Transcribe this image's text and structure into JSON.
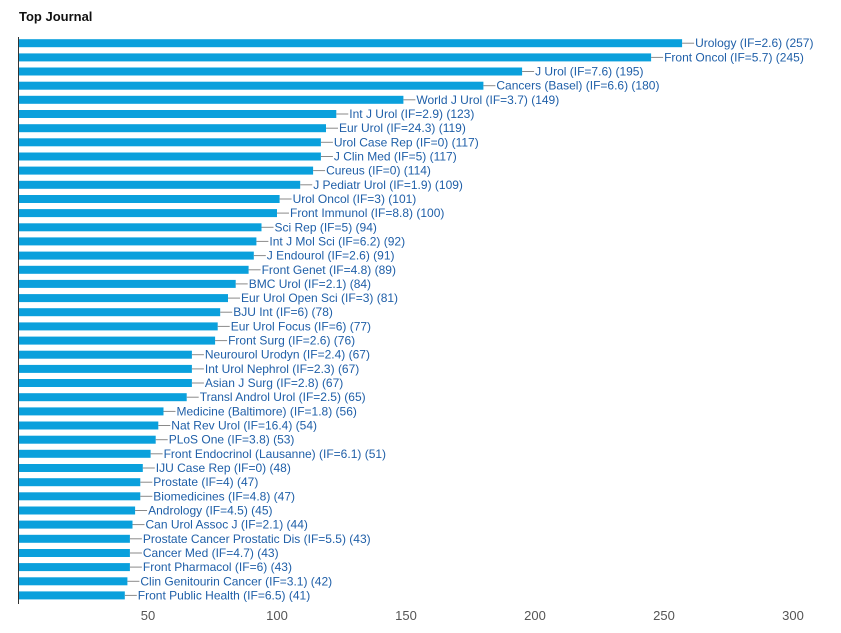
{
  "chart_data": {
    "type": "bar",
    "orientation": "horizontal",
    "title": "Top Journal",
    "xlabel": "",
    "ylabel": "",
    "xlim": [
      0,
      300
    ],
    "x_ticks": [
      50,
      100,
      150,
      200,
      250,
      300
    ],
    "grid": false,
    "legend": "none",
    "bar_color": "#0aa0dc",
    "label_color": "#1f5fa8",
    "categories": [
      "Urology (IF=2.6)",
      "Front Oncol (IF=5.7)",
      "J Urol (IF=7.6)",
      "Cancers (Basel) (IF=6.6)",
      "World J Urol (IF=3.7)",
      "Int J Urol (IF=2.9)",
      "Eur Urol (IF=24.3)",
      "Urol Case Rep (IF=0)",
      "J Clin Med (IF=5)",
      "Cureus (IF=0)",
      "J Pediatr Urol (IF=1.9)",
      "Urol Oncol (IF=3)",
      "Front Immunol (IF=8.8)",
      "Sci Rep (IF=5)",
      "Int J Mol Sci (IF=6.2)",
      "J Endourol (IF=2.6)",
      "Front Genet (IF=4.8)",
      "BMC Urol (IF=2.1)",
      "Eur Urol Open Sci (IF=3)",
      "BJU Int (IF=6)",
      "Eur Urol Focus (IF=6)",
      "Front Surg (IF=2.6)",
      "Neurourol Urodyn (IF=2.4)",
      "Int Urol Nephrol (IF=2.3)",
      "Asian J Surg (IF=2.8)",
      "Transl Androl Urol (IF=2.5)",
      "Medicine (Baltimore) (IF=1.8)",
      "Nat Rev Urol (IF=16.4)",
      "PLoS One (IF=3.8)",
      "Front Endocrinol (Lausanne) (IF=6.1)",
      "IJU Case Rep (IF=0)",
      "Prostate (IF=4)",
      "Biomedicines (IF=4.8)",
      "Andrology (IF=4.5)",
      "Can Urol Assoc J (IF=2.1)",
      "Prostate Cancer Prostatic Dis (IF=5.5)",
      "Cancer Med (IF=4.7)",
      "Front Pharmacol (IF=6)",
      "Clin Genitourin Cancer (IF=3.1)",
      "Front Public Health (IF=6.5)"
    ],
    "values": [
      257,
      245,
      195,
      180,
      149,
      123,
      119,
      117,
      117,
      114,
      109,
      101,
      100,
      94,
      92,
      91,
      89,
      84,
      81,
      78,
      77,
      76,
      67,
      67,
      67,
      65,
      56,
      54,
      53,
      51,
      48,
      47,
      47,
      45,
      44,
      43,
      43,
      43,
      42,
      41
    ]
  }
}
